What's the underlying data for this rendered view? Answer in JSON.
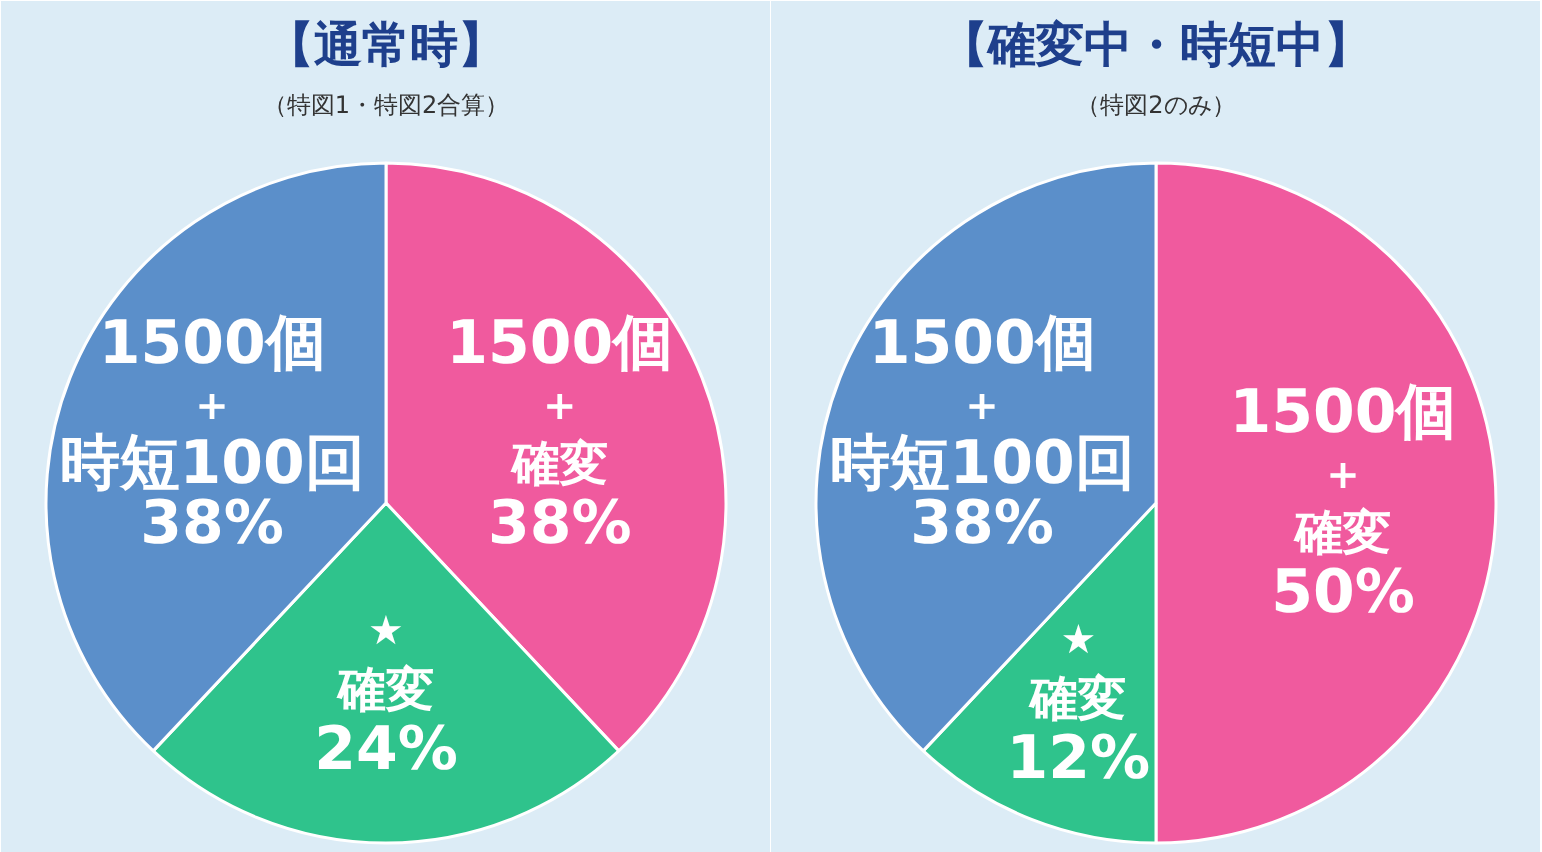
{
  "chart_data": [
    {
      "type": "pie",
      "title": "【通常時】",
      "subtitle": "（特図1・特図2合算）",
      "categories": [
        "1500個\n+\n確変",
        "★\n確変",
        "1500個\n+\n時短100回"
      ],
      "values": [
        38,
        24,
        38
      ],
      "value_labels": [
        "38%",
        "24%",
        "38%"
      ],
      "colors": [
        "#f05a9e",
        "#2fc38c",
        "#5b8fca"
      ]
    },
    {
      "type": "pie",
      "title": "【確変中・時短中】",
      "subtitle": "（特図2のみ）",
      "categories": [
        "1500個\n+\n確変",
        "★\n確変",
        "1500個\n+\n時短100回"
      ],
      "values": [
        50,
        12,
        38
      ],
      "value_labels": [
        "50%",
        "12%",
        "38%"
      ],
      "colors": [
        "#f05a9e",
        "#2fc38c",
        "#5b8fca"
      ]
    }
  ]
}
